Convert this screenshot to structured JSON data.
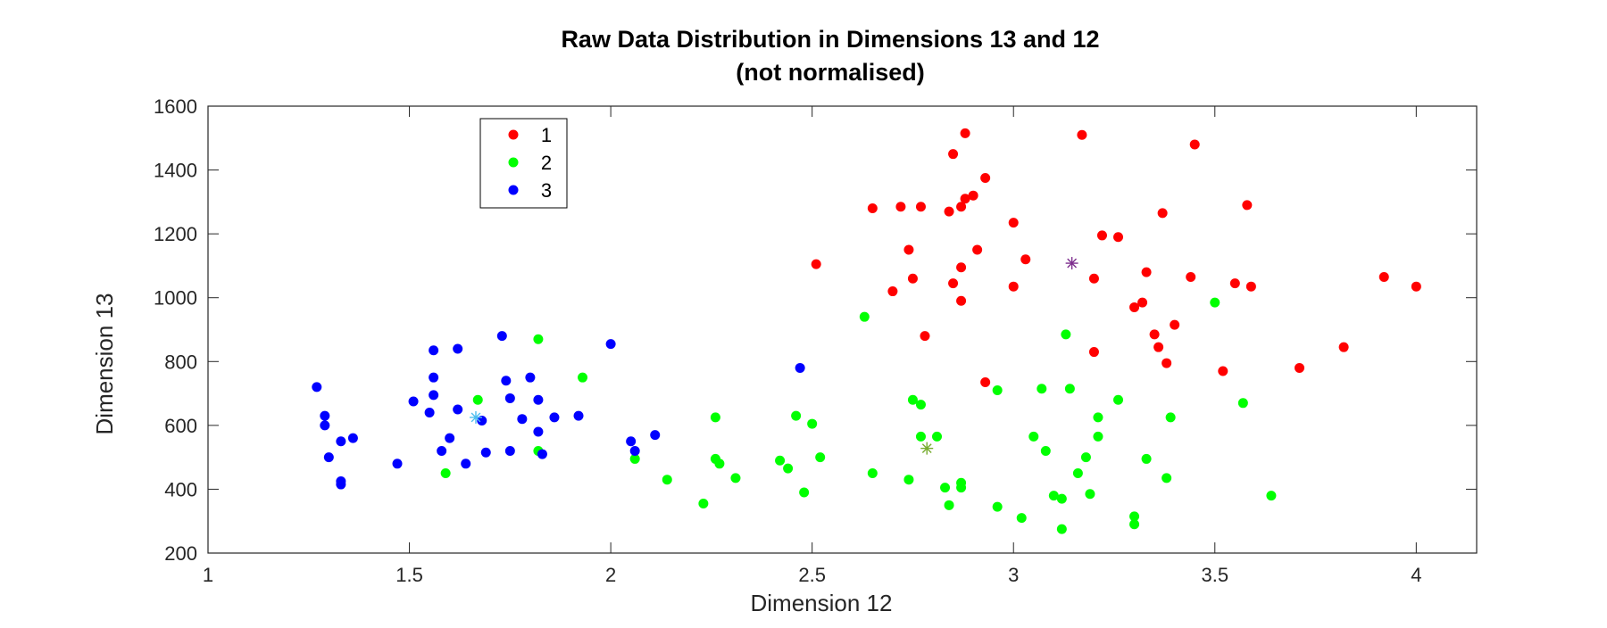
{
  "chart_data": {
    "type": "scatter",
    "title": "Raw Data Distribution in Dimensions 13 and 12",
    "subtitle": "(not normalised)",
    "xlabel": "Dimension 12",
    "ylabel": "Dimension 13",
    "xlim": [
      1,
      4.15
    ],
    "ylim": [
      200,
      1600
    ],
    "xticks": [
      1,
      1.5,
      2,
      2.5,
      3,
      3.5,
      4
    ],
    "xtick_labels": [
      "1",
      "1.5",
      "2",
      "2.5",
      "3",
      "3.5",
      "4"
    ],
    "yticks": [
      200,
      400,
      600,
      800,
      1000,
      1200,
      1400,
      1600
    ],
    "ytick_labels": [
      "200",
      "400",
      "600",
      "800",
      "1000",
      "1200",
      "1400",
      "1600"
    ],
    "grid": false,
    "legend_position": "top-left",
    "series": [
      {
        "name": "1",
        "color": "#ff0000",
        "points": [
          [
            2.51,
            1105
          ],
          [
            2.65,
            1280
          ],
          [
            2.7,
            1020
          ],
          [
            2.72,
            1285
          ],
          [
            2.74,
            1150
          ],
          [
            2.75,
            1060
          ],
          [
            2.77,
            1285
          ],
          [
            2.78,
            880
          ],
          [
            2.84,
            1270
          ],
          [
            2.85,
            1450
          ],
          [
            2.85,
            1045
          ],
          [
            2.87,
            1285
          ],
          [
            2.87,
            1095
          ],
          [
            2.87,
            990
          ],
          [
            2.88,
            1515
          ],
          [
            2.88,
            1310
          ],
          [
            2.9,
            1320
          ],
          [
            2.91,
            1150
          ],
          [
            2.93,
            1375
          ],
          [
            2.93,
            735
          ],
          [
            3.0,
            1235
          ],
          [
            3.0,
            1035
          ],
          [
            3.03,
            1120
          ],
          [
            3.17,
            1510
          ],
          [
            3.2,
            1060
          ],
          [
            3.2,
            830
          ],
          [
            3.22,
            1195
          ],
          [
            3.26,
            1190
          ],
          [
            3.3,
            970
          ],
          [
            3.32,
            985
          ],
          [
            3.33,
            1080
          ],
          [
            3.35,
            885
          ],
          [
            3.36,
            845
          ],
          [
            3.37,
            1265
          ],
          [
            3.38,
            795
          ],
          [
            3.4,
            915
          ],
          [
            3.44,
            1065
          ],
          [
            3.45,
            1480
          ],
          [
            3.52,
            770
          ],
          [
            3.55,
            1045
          ],
          [
            3.58,
            1290
          ],
          [
            3.59,
            1035
          ],
          [
            3.71,
            780
          ],
          [
            3.82,
            845
          ],
          [
            3.92,
            1065
          ],
          [
            4.0,
            1035
          ]
        ]
      },
      {
        "name": "2",
        "color": "#00ff00",
        "points": [
          [
            1.59,
            450
          ],
          [
            1.67,
            680
          ],
          [
            1.82,
            870
          ],
          [
            1.82,
            520
          ],
          [
            1.93,
            750
          ],
          [
            2.06,
            495
          ],
          [
            2.14,
            430
          ],
          [
            2.23,
            355
          ],
          [
            2.26,
            625
          ],
          [
            2.26,
            495
          ],
          [
            2.27,
            480
          ],
          [
            2.31,
            435
          ],
          [
            2.42,
            490
          ],
          [
            2.44,
            465
          ],
          [
            2.46,
            630
          ],
          [
            2.48,
            390
          ],
          [
            2.5,
            605
          ],
          [
            2.52,
            500
          ],
          [
            2.63,
            940
          ],
          [
            2.65,
            450
          ],
          [
            2.74,
            430
          ],
          [
            2.75,
            680
          ],
          [
            2.77,
            665
          ],
          [
            2.77,
            565
          ],
          [
            2.81,
            565
          ],
          [
            2.83,
            405
          ],
          [
            2.84,
            350
          ],
          [
            2.87,
            420
          ],
          [
            2.87,
            405
          ],
          [
            2.96,
            710
          ],
          [
            2.96,
            345
          ],
          [
            3.02,
            310
          ],
          [
            3.05,
            565
          ],
          [
            3.07,
            715
          ],
          [
            3.08,
            520
          ],
          [
            3.1,
            380
          ],
          [
            3.12,
            370
          ],
          [
            3.12,
            275
          ],
          [
            3.13,
            885
          ],
          [
            3.14,
            715
          ],
          [
            3.16,
            450
          ],
          [
            3.18,
            500
          ],
          [
            3.19,
            385
          ],
          [
            3.21,
            565
          ],
          [
            3.21,
            625
          ],
          [
            3.26,
            680
          ],
          [
            3.3,
            315
          ],
          [
            3.3,
            290
          ],
          [
            3.33,
            495
          ],
          [
            3.38,
            435
          ],
          [
            3.39,
            625
          ],
          [
            3.5,
            985
          ],
          [
            3.57,
            670
          ],
          [
            3.64,
            380
          ]
        ]
      },
      {
        "name": "3",
        "color": "#0000ff",
        "points": [
          [
            1.27,
            720
          ],
          [
            1.29,
            630
          ],
          [
            1.29,
            600
          ],
          [
            1.3,
            500
          ],
          [
            1.33,
            550
          ],
          [
            1.33,
            425
          ],
          [
            1.33,
            415
          ],
          [
            1.36,
            560
          ],
          [
            1.47,
            480
          ],
          [
            1.51,
            675
          ],
          [
            1.55,
            640
          ],
          [
            1.56,
            835
          ],
          [
            1.56,
            750
          ],
          [
            1.56,
            695
          ],
          [
            1.58,
            520
          ],
          [
            1.6,
            560
          ],
          [
            1.62,
            840
          ],
          [
            1.62,
            650
          ],
          [
            1.64,
            480
          ],
          [
            1.68,
            615
          ],
          [
            1.69,
            515
          ],
          [
            1.73,
            880
          ],
          [
            1.74,
            740
          ],
          [
            1.75,
            685
          ],
          [
            1.75,
            520
          ],
          [
            1.78,
            620
          ],
          [
            1.8,
            750
          ],
          [
            1.82,
            680
          ],
          [
            1.82,
            580
          ],
          [
            1.83,
            510
          ],
          [
            1.86,
            625
          ],
          [
            1.92,
            630
          ],
          [
            2.0,
            855
          ],
          [
            2.05,
            550
          ],
          [
            2.06,
            520
          ],
          [
            2.11,
            570
          ],
          [
            2.47,
            780
          ]
        ]
      }
    ],
    "centroids": [
      {
        "x": 3.145,
        "y": 1108,
        "color": "#7e2f8e",
        "marker": "asterisk"
      },
      {
        "x": 2.785,
        "y": 528,
        "color": "#77ac30",
        "marker": "asterisk"
      },
      {
        "x": 1.665,
        "y": 625,
        "color": "#4dbeee",
        "marker": "asterisk"
      }
    ]
  }
}
